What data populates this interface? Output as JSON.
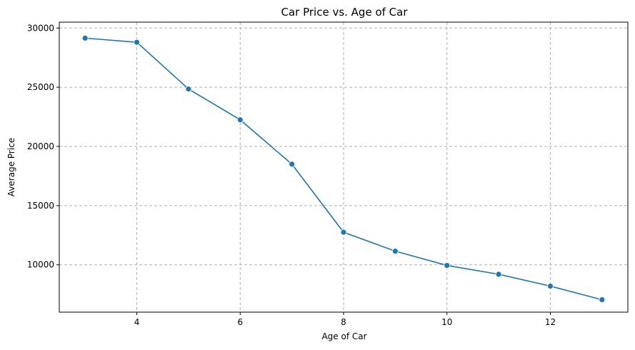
{
  "chart_data": {
    "type": "line",
    "title": "Car Price vs. Age of Car",
    "xlabel": "Age of Car",
    "ylabel": "Average Price",
    "xlim": [
      2.5,
      13.5
    ],
    "ylim": [
      6000,
      30500
    ],
    "xticks": [
      4,
      6,
      8,
      10,
      12
    ],
    "yticks": [
      10000,
      15000,
      20000,
      25000,
      30000
    ],
    "grid": true,
    "color": "#1f77b4",
    "x": [
      3,
      4,
      5,
      6,
      7,
      8,
      9,
      10,
      11,
      12,
      13
    ],
    "y": [
      29150,
      28800,
      24850,
      22250,
      18500,
      12750,
      11150,
      9950,
      9200,
      8200,
      7050
    ]
  }
}
